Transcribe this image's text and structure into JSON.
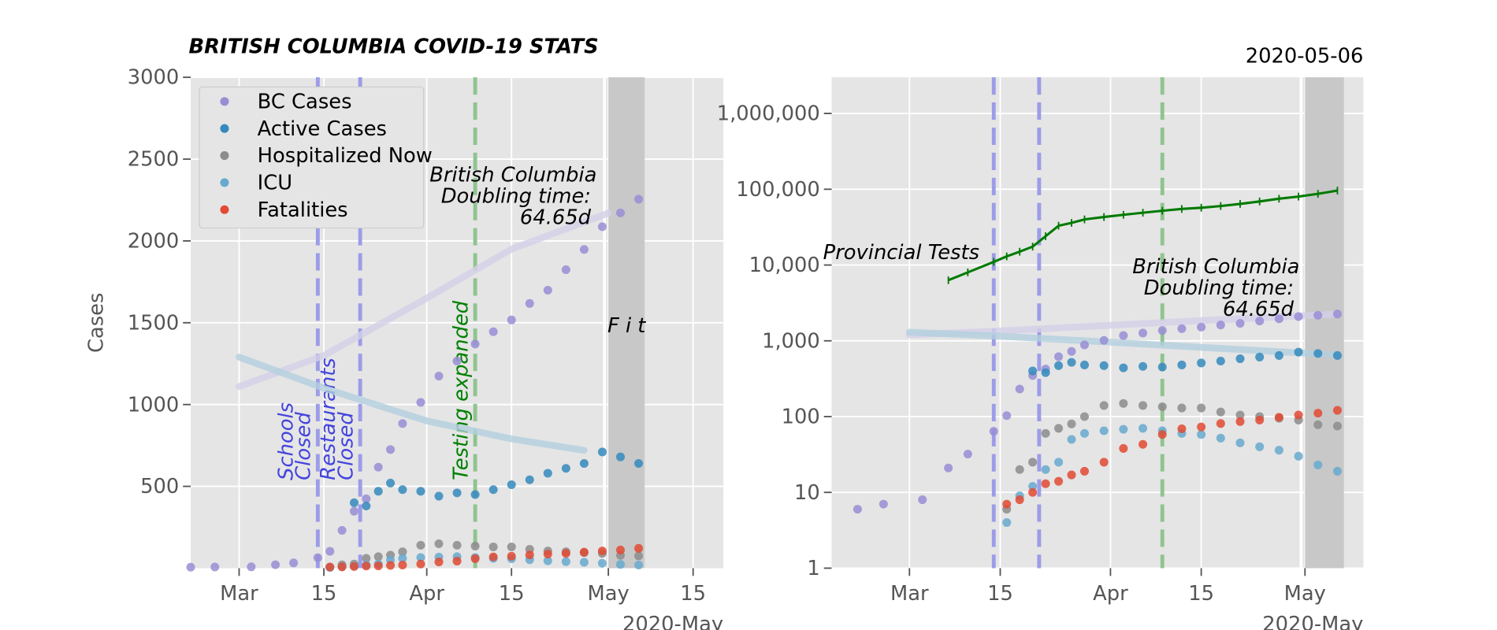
{
  "chart_data": [
    {
      "type": "scatter",
      "title": "BRITISH COLUMBIA COVID-19 STATS",
      "ylabel": "Cases",
      "x_offset_label": "2020-May",
      "xlim": [
        "2020-02-22",
        "2020-05-20"
      ],
      "ylim": [
        0,
        3000
      ],
      "yscale": "linear",
      "grid": true,
      "legend": "upper left",
      "xticks": [
        {
          "value": "2020-03-01",
          "label": "Mar"
        },
        {
          "value": "2020-03-15",
          "label": "15"
        },
        {
          "value": "2020-04-01",
          "label": "Apr"
        },
        {
          "value": "2020-04-15",
          "label": "15"
        },
        {
          "value": "2020-05-01",
          "label": "May"
        },
        {
          "value": "2020-05-15",
          "label": "15"
        }
      ],
      "yticks": [
        500,
        1000,
        1500,
        2000,
        2500,
        3000
      ],
      "x": [
        "2020-02-22",
        "2020-02-26",
        "2020-03-03",
        "2020-03-07",
        "2020-03-10",
        "2020-03-14",
        "2020-03-16",
        "2020-03-18",
        "2020-03-20",
        "2020-03-22",
        "2020-03-24",
        "2020-03-26",
        "2020-03-28",
        "2020-03-31",
        "2020-04-03",
        "2020-04-06",
        "2020-04-09",
        "2020-04-12",
        "2020-04-15",
        "2020-04-18",
        "2020-04-21",
        "2020-04-24",
        "2020-04-27",
        "2020-04-30",
        "2020-05-03",
        "2020-05-06"
      ],
      "series": [
        {
          "name": "BC Cases",
          "color": "#988ed5",
          "values": [
            6,
            7,
            8,
            21,
            32,
            64,
            103,
            231,
            348,
            424,
            617,
            725,
            884,
            1013,
            1174,
            1266,
            1370,
            1445,
            1517,
            1618,
            1699,
            1824,
            1948,
            2087,
            2171,
            2255
          ]
        },
        {
          "name": "Active Cases",
          "color": "#348abd",
          "values": [
            null,
            null,
            null,
            null,
            null,
            null,
            null,
            null,
            400,
            380,
            470,
            520,
            480,
            470,
            440,
            460,
            450,
            480,
            510,
            540,
            580,
            610,
            640,
            710,
            680,
            640
          ]
        },
        {
          "name": "Hospitalized Now",
          "color": "#8c8c8c",
          "values": [
            null,
            null,
            null,
            null,
            null,
            null,
            6,
            20,
            25,
            60,
            70,
            80,
            100,
            140,
            149,
            140,
            135,
            130,
            130,
            115,
            105,
            100,
            95,
            90,
            78,
            75
          ]
        },
        {
          "name": "ICU",
          "color": "#67a9cf",
          "values": [
            null,
            null,
            null,
            null,
            null,
            null,
            4,
            9,
            12,
            20,
            25,
            50,
            60,
            65,
            68,
            70,
            65,
            60,
            58,
            52,
            45,
            40,
            36,
            30,
            23,
            19
          ]
        },
        {
          "name": "Fatalities",
          "color": "#e24a33",
          "values": [
            null,
            null,
            null,
            null,
            null,
            null,
            7,
            8,
            10,
            13,
            14,
            17,
            19,
            25,
            38,
            43,
            58,
            69,
            73,
            81,
            86,
            90,
            98,
            105,
            111,
            121
          ]
        }
      ],
      "fits": [
        {
          "color": "#d4cfe8",
          "x": [
            "2020-03-01",
            "2020-03-15",
            "2020-04-01",
            "2020-04-15",
            "2020-05-01"
          ],
          "values": [
            1110,
            1300,
            1650,
            1950,
            2170
          ]
        },
        {
          "color": "#b3cfdf",
          "x": [
            "2020-03-01",
            "2020-03-15",
            "2020-04-01",
            "2020-04-15",
            "2020-04-27"
          ],
          "values": [
            1290,
            1100,
            900,
            790,
            720
          ]
        }
      ],
      "shade": {
        "x": [
          "2020-05-01",
          "2020-05-07"
        ],
        "label": "F i t"
      },
      "events": [
        {
          "x": "2020-03-14",
          "color": "#9c9ce8",
          "text_color": "#4444dd",
          "lines": [
            "Schools",
            "Closed"
          ]
        },
        {
          "x": "2020-03-21",
          "color": "#9c9ce8",
          "text_color": "#4444dd",
          "lines": [
            "Restaurants",
            "Closed"
          ]
        },
        {
          "x": "2020-04-09",
          "color": "#8fc48f",
          "text_color": "#008000",
          "lines": [
            "Testing expanded"
          ]
        }
      ],
      "annotation": [
        "British Columbia",
        "Doubling time:",
        "64.65d"
      ]
    },
    {
      "type": "scatter",
      "title": "2020-05-06",
      "x_offset_label": "2020-May",
      "xlim": [
        "2020-02-18",
        "2020-05-10"
      ],
      "ylim": [
        1,
        3000000
      ],
      "yscale": "log",
      "grid": true,
      "xticks": [
        {
          "value": "2020-03-01",
          "label": "Mar"
        },
        {
          "value": "2020-03-15",
          "label": "15"
        },
        {
          "value": "2020-04-01",
          "label": "Apr"
        },
        {
          "value": "2020-04-15",
          "label": "15"
        },
        {
          "value": "2020-05-01",
          "label": "May"
        }
      ],
      "yticks": [
        1,
        10,
        100,
        {
          "value": 1000,
          "label": "1,000"
        },
        {
          "value": 10000,
          "label": "10,000"
        },
        {
          "value": 100000,
          "label": "100,000"
        },
        {
          "value": 1000000,
          "label": "1,000,000"
        }
      ],
      "x": [
        "2020-02-22",
        "2020-02-26",
        "2020-03-03",
        "2020-03-07",
        "2020-03-10",
        "2020-03-14",
        "2020-03-16",
        "2020-03-18",
        "2020-03-20",
        "2020-03-22",
        "2020-03-24",
        "2020-03-26",
        "2020-03-28",
        "2020-03-31",
        "2020-04-03",
        "2020-04-06",
        "2020-04-09",
        "2020-04-12",
        "2020-04-15",
        "2020-04-18",
        "2020-04-21",
        "2020-04-24",
        "2020-04-27",
        "2020-04-30",
        "2020-05-03",
        "2020-05-06"
      ],
      "series": [
        {
          "color": "#988ed5",
          "values": [
            6,
            7,
            8,
            21,
            32,
            64,
            103,
            231,
            348,
            424,
            617,
            725,
            884,
            1013,
            1174,
            1266,
            1370,
            1445,
            1517,
            1618,
            1699,
            1824,
            1948,
            2087,
            2171,
            2255
          ]
        },
        {
          "color": "#348abd",
          "values": [
            null,
            null,
            null,
            null,
            null,
            null,
            null,
            null,
            400,
            380,
            470,
            520,
            480,
            470,
            440,
            460,
            450,
            480,
            510,
            540,
            580,
            610,
            640,
            710,
            680,
            640
          ]
        },
        {
          "color": "#8c8c8c",
          "values": [
            null,
            null,
            null,
            null,
            null,
            null,
            6,
            20,
            25,
            60,
            70,
            80,
            100,
            140,
            149,
            140,
            135,
            130,
            130,
            115,
            105,
            100,
            95,
            90,
            78,
            75
          ]
        },
        {
          "color": "#67a9cf",
          "values": [
            null,
            null,
            null,
            null,
            null,
            null,
            4,
            9,
            12,
            20,
            25,
            50,
            60,
            65,
            68,
            70,
            65,
            60,
            58,
            52,
            45,
            40,
            36,
            30,
            23,
            19
          ]
        },
        {
          "color": "#e24a33",
          "values": [
            null,
            null,
            null,
            null,
            null,
            null,
            7,
            8,
            10,
            13,
            14,
            17,
            19,
            25,
            38,
            43,
            58,
            69,
            73,
            81,
            86,
            90,
            98,
            105,
            111,
            121
          ]
        },
        {
          "name": "Provincial Tests",
          "kind": "line",
          "color": "#007a00",
          "values": [
            null,
            null,
            null,
            6300,
            8000,
            11000,
            13000,
            15000,
            17500,
            24000,
            33000,
            36000,
            40000,
            43000,
            46000,
            49000,
            52000,
            55000,
            57000,
            60000,
            64000,
            69000,
            75000,
            80000,
            87000,
            96000
          ]
        }
      ],
      "fits": [
        {
          "color": "#d4cfe8",
          "x": [
            "2020-03-01",
            "2020-03-15",
            "2020-04-01",
            "2020-04-15",
            "2020-05-06"
          ],
          "values": [
            1200,
            1350,
            1600,
            1850,
            2250
          ]
        },
        {
          "color": "#b3cfdf",
          "x": [
            "2020-03-01",
            "2020-03-15",
            "2020-04-01",
            "2020-04-15",
            "2020-05-06"
          ],
          "values": [
            1300,
            1150,
            960,
            820,
            650
          ]
        }
      ],
      "shade": {
        "x": [
          "2020-05-01",
          "2020-05-07"
        ]
      },
      "events": [
        {
          "x": "2020-03-14",
          "color": "#9c9ce8"
        },
        {
          "x": "2020-03-21",
          "color": "#9c9ce8"
        },
        {
          "x": "2020-04-09",
          "color": "#8fc48f"
        }
      ],
      "annotation": [
        "British Columbia",
        "Doubling time:",
        "64.65d"
      ]
    }
  ]
}
